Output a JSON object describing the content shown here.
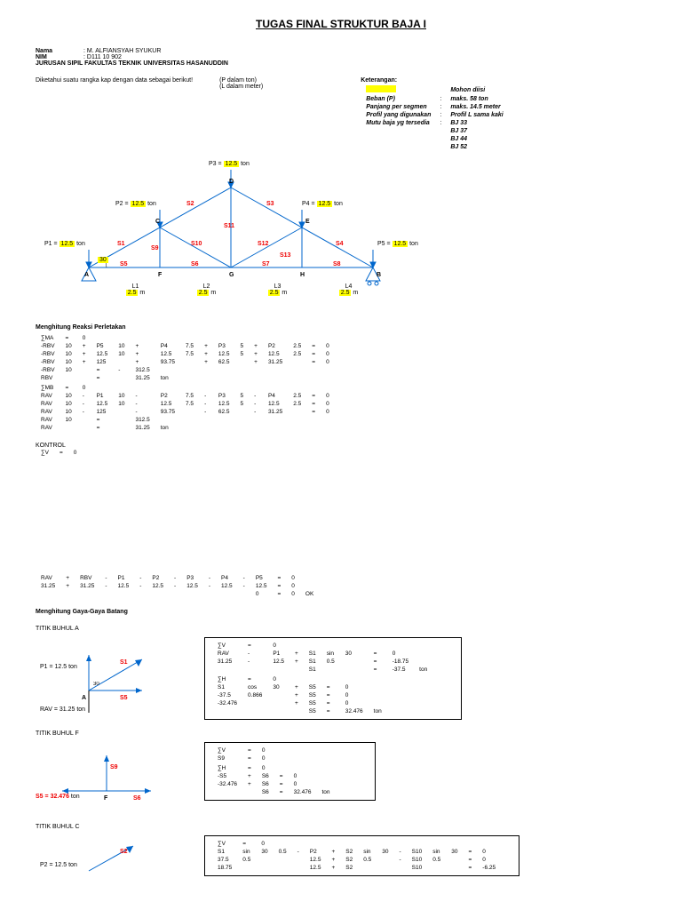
{
  "title": "TUGAS FINAL STRUKTUR BAJA I",
  "nama_lbl": "Nama",
  "nama": ": M. ALFIANSYAH SYUKUR",
  "nim_lbl": "NIM",
  "nim": ": D111 10 902",
  "dept": "JURUSAN SIPIL FAKULTAS TEKNIK UNIVERSITAS HASANUDDIN",
  "desc": "Diketahui suatu rangka kap dengan data sebagai berikut!",
  "unit1": "(P dalam ton)",
  "unit2": "(L dalam meter)",
  "ket_title": "Keterangan:",
  "ket": [
    [
      "",
      "",
      "Mohon diisi"
    ],
    [
      "Beban (P)",
      ":",
      "maks. 58 ton"
    ],
    [
      "Panjang per segmen",
      ":",
      "maks. 14.5 meter"
    ],
    [
      "Profil yang digunakan",
      ":",
      "Profil L sama kaki"
    ],
    [
      "Mutu baja yg tersedia",
      ":",
      "BJ 33"
    ],
    [
      "",
      "",
      "BJ 37"
    ],
    [
      "",
      "",
      "BJ 44"
    ],
    [
      "",
      "",
      "BJ 52"
    ]
  ],
  "truss": {
    "P": [
      "P1 =",
      "P2 =",
      "P3 =",
      "P4 =",
      "P5 ="
    ],
    "Pval": "12.5",
    "ton": "ton",
    "L": [
      "L1",
      "L2",
      "L3",
      "L4"
    ],
    "Lval": "2.5",
    "m": "m",
    "angle": "30",
    "nodes": [
      "A",
      "B",
      "C",
      "D",
      "E",
      "F",
      "G",
      "H"
    ],
    "members": [
      "S1",
      "S2",
      "S3",
      "S4",
      "S5",
      "S6",
      "S7",
      "S8",
      "S9",
      "S10",
      "S11",
      "S12",
      "S13"
    ]
  },
  "sec1_title": "Menghitung Reaksi Perletakan",
  "sec1_rows": [
    [
      "∑MA",
      "=",
      "0",
      "",
      "",
      "",
      "",
      "",
      "",
      "",
      "",
      "",
      "",
      "",
      "",
      "",
      "",
      "",
      ""
    ],
    [
      "-RBV",
      "10",
      "+",
      "P5",
      "10",
      "+",
      "P4",
      "7.5",
      "+",
      "P3",
      "5",
      "+",
      "P2",
      "2.5",
      "=",
      "0",
      "",
      ""
    ],
    [
      "-RBV",
      "10",
      "+",
      "12.5",
      "10",
      "+",
      "12.5",
      "7.5",
      "+",
      "12.5",
      "5",
      "+",
      "12.5",
      "2.5",
      "=",
      "0",
      "",
      ""
    ],
    [
      "-RBV",
      "10",
      "+",
      "125",
      "",
      "+",
      "93.75",
      "",
      "+",
      "62.5",
      "",
      "+",
      "31.25",
      "",
      "=",
      "0",
      "",
      ""
    ],
    [
      "-RBV",
      "10",
      "",
      "=",
      "-",
      "312.5",
      "",
      "",
      "",
      "",
      "",
      "",
      "",
      "",
      "",
      "",
      "",
      ""
    ],
    [
      "RBV",
      "",
      "",
      "=",
      "",
      "31.25",
      "ton",
      "",
      "",
      "",
      "",
      "",
      "",
      "",
      "",
      "",
      "",
      ""
    ],
    [
      "",
      "",
      "",
      "",
      "",
      "",
      "",
      "",
      "",
      "",
      "",
      "",
      "",
      "",
      "",
      "",
      "",
      ""
    ],
    [
      "∑MB",
      "=",
      "0",
      "",
      "",
      "",
      "",
      "",
      "",
      "",
      "",
      "",
      "",
      "",
      "",
      "",
      "",
      ""
    ],
    [
      "RAV",
      "10",
      "-",
      "P1",
      "10",
      "-",
      "P2",
      "7.5",
      "-",
      "P3",
      "5",
      "-",
      "P4",
      "2.5",
      "=",
      "0",
      "",
      ""
    ],
    [
      "RAV",
      "10",
      "-",
      "12.5",
      "10",
      "-",
      "12.5",
      "7.5",
      "-",
      "12.5",
      "5",
      "-",
      "12.5",
      "2.5",
      "=",
      "0",
      "",
      ""
    ],
    [
      "RAV",
      "10",
      "-",
      "125",
      "",
      "-",
      "93.75",
      "",
      "-",
      "62.5",
      "",
      "-",
      "31.25",
      "",
      "=",
      "0",
      "",
      ""
    ],
    [
      "RAV",
      "10",
      "",
      "=",
      "",
      "312.5",
      "",
      "",
      "",
      "",
      "",
      "",
      "",
      "",
      "",
      "",
      "",
      ""
    ],
    [
      "RAV",
      "",
      "",
      "=",
      "",
      "31.25",
      "ton",
      "",
      "",
      "",
      "",
      "",
      "",
      "",
      "",
      "",
      "",
      ""
    ]
  ],
  "kontrol_title": "KONTROL",
  "kontrol_rows": [
    [
      "∑V",
      "=",
      "0"
    ]
  ],
  "kontrol2_rows": [
    [
      "RAV",
      "+",
      "RBV",
      "-",
      "P1",
      "-",
      "P2",
      "-",
      "P3",
      "-",
      "P4",
      "-",
      "P5",
      "=",
      "0",
      ""
    ],
    [
      "31.25",
      "+",
      "31.25",
      "-",
      "12.5",
      "-",
      "12.5",
      "-",
      "12.5",
      "-",
      "12.5",
      "-",
      "12.5",
      "=",
      "0",
      ""
    ],
    [
      "",
      "",
      "",
      "",
      "",
      "",
      "",
      "",
      "",
      "",
      "",
      "",
      "0",
      "=",
      "0",
      "OK"
    ]
  ],
  "sec2_title": "Menghitung Gaya-Gaya Batang",
  "buhulA": "TITIK BUHUL A",
  "buhulA_p1": "P1 =",
  "buhulA_p1v": "12.5",
  "buhulA_rav": "RAV =",
  "buhulA_ravv": "31.25",
  "buhulA_rows": [
    [
      "∑V",
      "=",
      "0",
      "",
      "",
      "",
      "",
      "",
      "",
      "",
      "",
      ""
    ],
    [
      "RAV",
      "-",
      "P1",
      "+",
      "S1",
      "sin",
      "30",
      "=",
      "0",
      "",
      "",
      ""
    ],
    [
      "31.25",
      "-",
      "12.5",
      "+",
      "S1",
      "0.5",
      "",
      "=",
      "-18.75",
      "",
      "",
      ""
    ],
    [
      "",
      "",
      "",
      "",
      "S1",
      "",
      "",
      "=",
      "-37.5",
      "ton",
      "",
      ""
    ],
    [
      "",
      "",
      "",
      "",
      "",
      "",
      "",
      "",
      "",
      "",
      "",
      ""
    ],
    [
      "∑H",
      "=",
      "0",
      "",
      "",
      "",
      "",
      "",
      "",
      "",
      "",
      ""
    ],
    [
      "S1",
      "cos",
      "30",
      "+",
      "S5",
      "=",
      "0",
      "",
      "",
      "",
      "",
      ""
    ],
    [
      "-37.5",
      "0.866",
      "",
      "+",
      "S5",
      "=",
      "0",
      "",
      "",
      "",
      "",
      ""
    ],
    [
      "-32.476",
      "",
      "",
      "+",
      "S5",
      "=",
      "0",
      "",
      "",
      "",
      "",
      ""
    ],
    [
      "",
      "",
      "",
      "",
      "S5",
      "=",
      "32.476",
      "ton",
      "",
      "",
      "",
      ""
    ]
  ],
  "buhulF": "TITIK BUHUL F",
  "buhulF_s5": "S5 =",
  "buhulF_s5v": "32.476",
  "buhulF_rows": [
    [
      "∑V",
      "=",
      "0",
      "",
      "",
      "",
      "",
      "",
      ""
    ],
    [
      "S9",
      "=",
      "0",
      "",
      "",
      "",
      "",
      "",
      ""
    ],
    [
      "",
      "",
      "",
      "",
      "",
      "",
      "",
      "",
      ""
    ],
    [
      "∑H",
      "=",
      "0",
      "",
      "",
      "",
      "",
      "",
      ""
    ],
    [
      "-S5",
      "+",
      "S6",
      "=",
      "0",
      "",
      "",
      "",
      ""
    ],
    [
      "-32.476",
      "+",
      "S6",
      "=",
      "0",
      "",
      "",
      "",
      ""
    ],
    [
      "",
      "",
      "S6",
      "=",
      "32.476",
      "ton",
      "",
      "",
      ""
    ]
  ],
  "buhulC": "TITIK BUHUL C",
  "buhulC_p2": "P2 =",
  "buhulC_p2v": "12.5",
  "buhulC_rows": [
    [
      "∑V",
      "=",
      "0",
      "",
      "",
      "",
      "",
      "",
      "",
      "",
      "",
      "",
      "",
      "",
      "",
      "",
      ""
    ],
    [
      "S1",
      "sin",
      "30",
      "0.5",
      "-",
      "P2",
      "+",
      "S2",
      "sin",
      "30",
      "-",
      "S10",
      "sin",
      "30",
      "=",
      "0",
      ""
    ],
    [
      "37.5",
      "0.5",
      "",
      "",
      "",
      "12.5",
      "+",
      "S2",
      "0.5",
      "",
      "-",
      "S10",
      "0.5",
      "",
      "=",
      "0",
      ""
    ],
    [
      "18.75",
      "",
      "",
      "",
      "",
      "12.5",
      "+",
      "S2",
      "",
      "",
      "",
      "S10",
      "",
      "",
      "=",
      "-6.25",
      ""
    ]
  ]
}
